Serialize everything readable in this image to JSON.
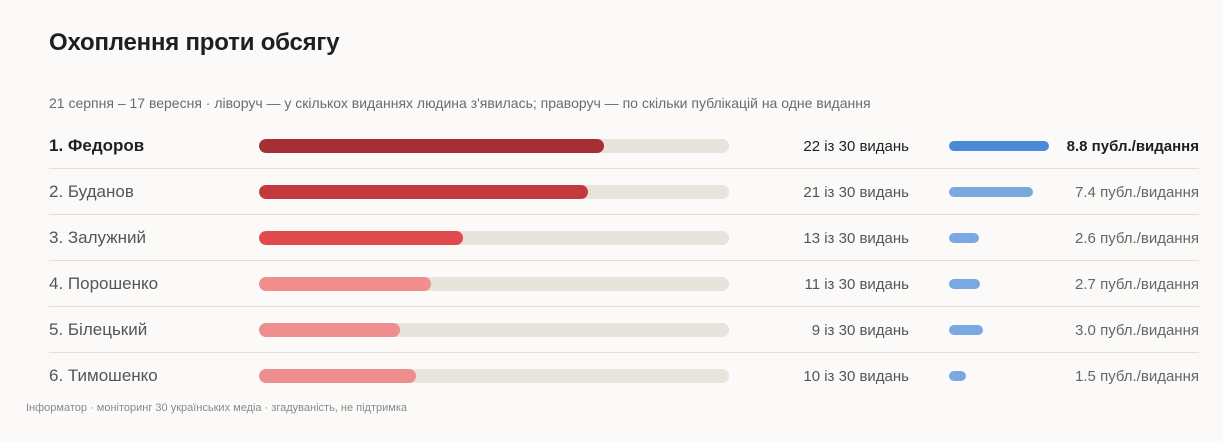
{
  "title": "Охоплення проти обсягу",
  "subtitle": "21 серпня – 17 вересня · ліворуч — у скількох виданнях людина з'явилась; праворуч — по скільки публікацій на одне видання",
  "footer": "Інформатор · моніторинг 30 українських медіа · згадуваність, не підтримка",
  "colors": {
    "track": "#e8e3dc",
    "intensity_top": "#4a88d8",
    "intensity_other": "#7aa8e0"
  },
  "chart_data": {
    "type": "bar",
    "outlets_total": 30,
    "rows": [
      {
        "name": "1. Федоров",
        "outlets": 22,
        "count_label": "22 із 30 видань",
        "intensity": 8.8,
        "intensity_label": "8.8 публ./видання",
        "color": "#a52f33"
      },
      {
        "name": "2. Буданов",
        "outlets": 21,
        "count_label": "21 із 30 видань",
        "intensity": 7.4,
        "intensity_label": "7.4 публ./видання",
        "color": "#c23a3d"
      },
      {
        "name": "3. Залужний",
        "outlets": 13,
        "count_label": "13 із 30 видань",
        "intensity": 2.6,
        "intensity_label": "2.6 публ./видання",
        "color": "#e04a4c"
      },
      {
        "name": "4. Порошенко",
        "outlets": 11,
        "count_label": "11 із 30 видань",
        "intensity": 2.7,
        "intensity_label": "2.7 публ./видання",
        "color": "#f28e8e"
      },
      {
        "name": "5. Білецький",
        "outlets": 9,
        "count_label": "9 із 30 видань",
        "intensity": 3.0,
        "intensity_label": "3.0 публ./видання",
        "color": "#ee8e8e"
      },
      {
        "name": "6. Тимошенко",
        "outlets": 10,
        "count_label": "10 із 30 видань",
        "intensity": 1.5,
        "intensity_label": "1.5 публ./видання",
        "color": "#ee8e8e"
      }
    ]
  }
}
